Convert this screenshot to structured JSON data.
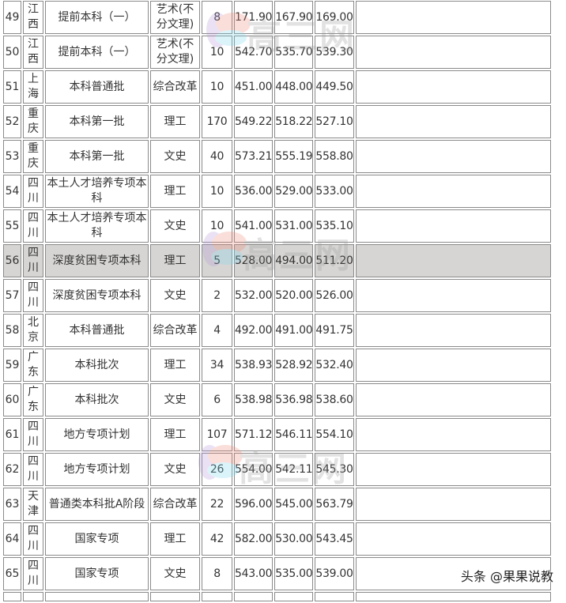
{
  "rows": [
    {
      "no": "49",
      "province": "江西",
      "batch": "提前本科（一）",
      "category": "艺术(不分文理)",
      "plan": "8",
      "max": "171.90",
      "min": "167.90",
      "avg": "169.00",
      "note": ""
    },
    {
      "no": "50",
      "province": "江西",
      "batch": "提前本科（一）",
      "category": "艺术(不分文理)",
      "plan": "10",
      "max": "542.70",
      "min": "535.70",
      "avg": "539.30",
      "note": ""
    },
    {
      "no": "51",
      "province": "上海",
      "batch": "本科普通批",
      "category": "综合改革",
      "plan": "10",
      "max": "451.00",
      "min": "448.00",
      "avg": "449.50",
      "note": ""
    },
    {
      "no": "52",
      "province": "重庆",
      "batch": "本科第一批",
      "category": "理工",
      "plan": "170",
      "max": "549.22",
      "min": "518.22",
      "avg": "527.10",
      "note": ""
    },
    {
      "no": "53",
      "province": "重庆",
      "batch": "本科第一批",
      "category": "文史",
      "plan": "40",
      "max": "573.21",
      "min": "555.19",
      "avg": "558.80",
      "note": ""
    },
    {
      "no": "54",
      "province": "四川",
      "batch": "本土人才培养专项本科",
      "category": "理工",
      "plan": "10",
      "max": "536.00",
      "min": "529.00",
      "avg": "533.00",
      "note": ""
    },
    {
      "no": "55",
      "province": "四川",
      "batch": "本土人才培养专项本科",
      "category": "文史",
      "plan": "10",
      "max": "541.00",
      "min": "531.00",
      "avg": "535.10",
      "note": ""
    },
    {
      "no": "56",
      "province": "四川",
      "batch": "深度贫困专项本科",
      "category": "理工",
      "plan": "5",
      "max": "528.00",
      "min": "494.00",
      "avg": "511.20",
      "note": "",
      "highlight": true
    },
    {
      "no": "57",
      "province": "四川",
      "batch": "深度贫困专项本科",
      "category": "文史",
      "plan": "2",
      "max": "532.00",
      "min": "520.00",
      "avg": "526.00",
      "note": ""
    },
    {
      "no": "58",
      "province": "北京",
      "batch": "本科普通批",
      "category": "综合改革",
      "plan": "4",
      "max": "492.00",
      "min": "491.00",
      "avg": "491.75",
      "note": ""
    },
    {
      "no": "59",
      "province": "广东",
      "batch": "本科批次",
      "category": "理工",
      "plan": "34",
      "max": "538.93",
      "min": "528.92",
      "avg": "532.40",
      "note": ""
    },
    {
      "no": "60",
      "province": "广东",
      "batch": "本科批次",
      "category": "文史",
      "plan": "6",
      "max": "538.98",
      "min": "536.98",
      "avg": "538.60",
      "note": ""
    },
    {
      "no": "61",
      "province": "四川",
      "batch": "地方专项计划",
      "category": "理工",
      "plan": "107",
      "max": "571.12",
      "min": "546.11",
      "avg": "554.10",
      "note": ""
    },
    {
      "no": "62",
      "province": "四川",
      "batch": "地方专项计划",
      "category": "文史",
      "plan": "26",
      "max": "554.00",
      "min": "542.11",
      "avg": "545.30",
      "note": ""
    },
    {
      "no": "63",
      "province": "天津",
      "batch": "普通类本科批A阶段",
      "category": "综合改革",
      "plan": "22",
      "max": "596.00",
      "min": "545.00",
      "avg": "563.79",
      "note": ""
    },
    {
      "no": "64",
      "province": "四川",
      "batch": "国家专项",
      "category": "理工",
      "plan": "42",
      "max": "582.00",
      "min": "530.00",
      "avg": "543.45",
      "note": ""
    },
    {
      "no": "65",
      "province": "四川",
      "batch": "国家专项",
      "category": "文史",
      "plan": "8",
      "max": "543.00",
      "min": "535.00",
      "avg": "539.00",
      "note": ""
    }
  ],
  "watermark_logo_text": "高三网",
  "footer_watermark": "头条 @果果说教",
  "colors": {
    "border": "#8a8a8a",
    "highlight_row": "#d6d5d3",
    "text": "#333333"
  }
}
